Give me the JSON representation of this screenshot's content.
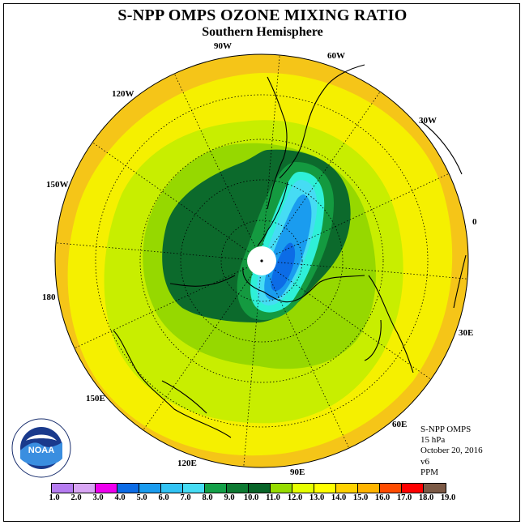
{
  "header": {
    "title": "S-NPP OMPS OZONE MIXING RATIO",
    "subtitle": "Southern Hemisphere"
  },
  "longitude_labels": {
    "w90": "90W",
    "w60": "60W",
    "w30": "30W",
    "e0": "0",
    "e30": "30E",
    "e60": "60E",
    "e90": "90E",
    "e120": "120E",
    "e150": "150E",
    "lon180": "180",
    "w150": "150W",
    "w120": "120W"
  },
  "info": {
    "instrument": "S-NPP OMPS",
    "level": "15 hPa",
    "date": "October 20, 2016",
    "version": "v6",
    "units": "PPM"
  },
  "logo": {
    "text": "NOAA",
    "icon": "noaa-logo"
  },
  "colorbar": {
    "colors": [
      "#b67cf1",
      "#d9a6f5",
      "#ee00ee",
      "#0000e6",
      "#0c6ce6",
      "#1a9cef",
      "#32c3f4",
      "#46dcf4",
      "#2ff0d8",
      "#13a048",
      "#0d7a32",
      "#086428",
      "#96dc00",
      "#c8f000",
      "#e6ff00",
      "#ffff00",
      "#ffd200",
      "#ffb400",
      "#ff8700",
      "#ff4b00",
      "#ff0000",
      "#7c5a46"
    ],
    "tick_labels": [
      "1.0",
      "2.0",
      "3.0",
      "4.0",
      "5.0",
      "6.0",
      "7.0",
      "8.0",
      "9.0",
      "10.0",
      "11.0",
      "12.0",
      "13.0",
      "14.0",
      "15.0",
      "16.0",
      "17.0",
      "18.0",
      "19.0"
    ]
  },
  "map_colors": {
    "outer_ring": "#f5c518",
    "yellow": "#f5f000",
    "light_green": "#c8ee00",
    "green": "#96d800",
    "dark_green": "#0c6a2c",
    "mid_green": "#149a40",
    "teal": "#2ff0d8",
    "cyan": "#46dcf4",
    "blue_light": "#32c3f4",
    "blue": "#1a9cef",
    "blue_deep": "#0c6ce6"
  }
}
